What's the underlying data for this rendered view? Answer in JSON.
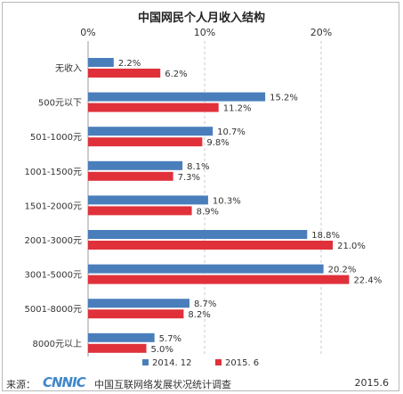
{
  "chart_data": {
    "type": "bar",
    "orientation": "horizontal",
    "title": "中国网民个人月收入结构",
    "categories": [
      "无收入",
      "500元以下",
      "501-1000元",
      "1001-1500元",
      "1501-2000元",
      "2001-3000元",
      "3001-5000元",
      "5001-8000元",
      "8000元以上"
    ],
    "series": [
      {
        "name": "2014. 12",
        "color": "#4a7ebb",
        "values": [
          2.2,
          15.2,
          10.7,
          8.1,
          10.3,
          18.8,
          20.2,
          8.7,
          5.7
        ],
        "labels": [
          "2.2%",
          "15.2%",
          "10.7%",
          "8.1%",
          "10.3%",
          "18.8%",
          "20.2%",
          "8.7%",
          "5.7%"
        ]
      },
      {
        "name": "2015. 6",
        "color": "#e0313b",
        "values": [
          6.2,
          11.2,
          9.8,
          7.3,
          8.9,
          21.0,
          22.4,
          8.2,
          5.0
        ],
        "labels": [
          "6.2%",
          "11.2%",
          "9.8%",
          "7.3%",
          "8.9%",
          "21.0%",
          "22.4%",
          "8.2%",
          "5.0%"
        ]
      }
    ],
    "xlim": [
      0,
      25
    ],
    "xticks": [
      0,
      10,
      20
    ],
    "xtick_labels": [
      "0%",
      "10%",
      "20%"
    ],
    "grid": true,
    "legend_position": "bottom"
  },
  "footer": {
    "source_label": "来源：",
    "logo_text": "CNNIC",
    "org_name": "中国互联网络发展状况统计调查",
    "date": "2015.6"
  }
}
